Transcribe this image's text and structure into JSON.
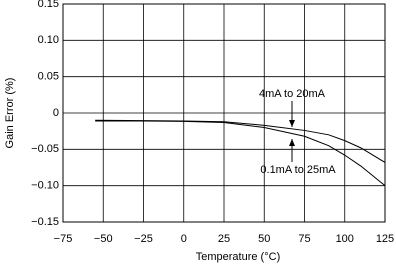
{
  "chart_data": {
    "type": "line",
    "x_label": "Temperature (°C)",
    "y_label": "Gain Error (%)",
    "x": [
      -55,
      -25,
      0,
      25,
      50,
      75,
      90,
      100,
      110,
      125
    ],
    "series": [
      {
        "name": "4mA to 20mA",
        "color": "#000000",
        "values": [
          -0.01,
          -0.0105,
          -0.011,
          -0.012,
          -0.017,
          -0.024,
          -0.03,
          -0.038,
          -0.048,
          -0.068
        ]
      },
      {
        "name": "0.1mA to 25mA",
        "color": "#000000",
        "values": [
          -0.011,
          -0.011,
          -0.0115,
          -0.013,
          -0.02,
          -0.032,
          -0.045,
          -0.058,
          -0.073,
          -0.1
        ]
      }
    ],
    "xlim": [
      -75,
      125
    ],
    "xticks": [
      {
        "value": -75,
        "label": "−75"
      },
      {
        "value": -50,
        "label": "−50"
      },
      {
        "value": -25,
        "label": "−25"
      },
      0,
      25,
      50,
      75,
      100,
      125
    ],
    "ylim": [
      -0.15,
      0.15
    ],
    "yticks": [
      {
        "value": -0.15,
        "label": "−0.15"
      },
      {
        "value": -0.1,
        "label": "−0.10"
      },
      {
        "value": -0.05,
        "label": "−0.05"
      },
      0,
      0.05,
      {
        "value": 0.1,
        "label": "0.10"
      },
      0.15
    ],
    "grid": true
  }
}
